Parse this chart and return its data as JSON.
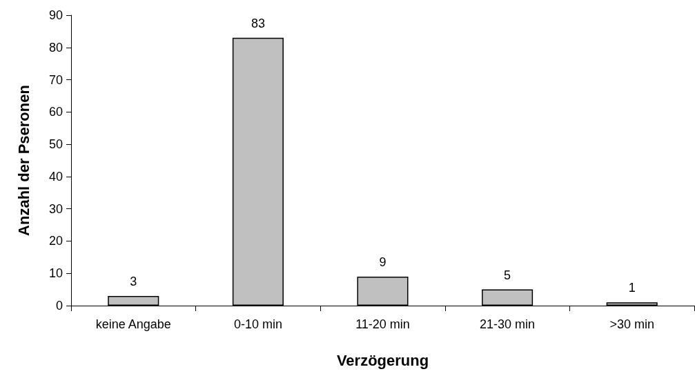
{
  "chart_data": {
    "type": "bar",
    "xlabel": "Verzögerung",
    "ylabel": "Anzahl der Pseronen",
    "categories": [
      "keine Angabe",
      "0-10 min",
      "11-20 min",
      "21-30 min",
      ">30 min"
    ],
    "values": [
      3,
      83,
      9,
      5,
      1
    ],
    "color": "#c0c0c0",
    "ylim": [
      0,
      90
    ],
    "yticks": [
      0,
      10,
      20,
      30,
      40,
      50,
      60,
      70,
      80,
      90
    ],
    "grid": false,
    "data_labels": true
  }
}
